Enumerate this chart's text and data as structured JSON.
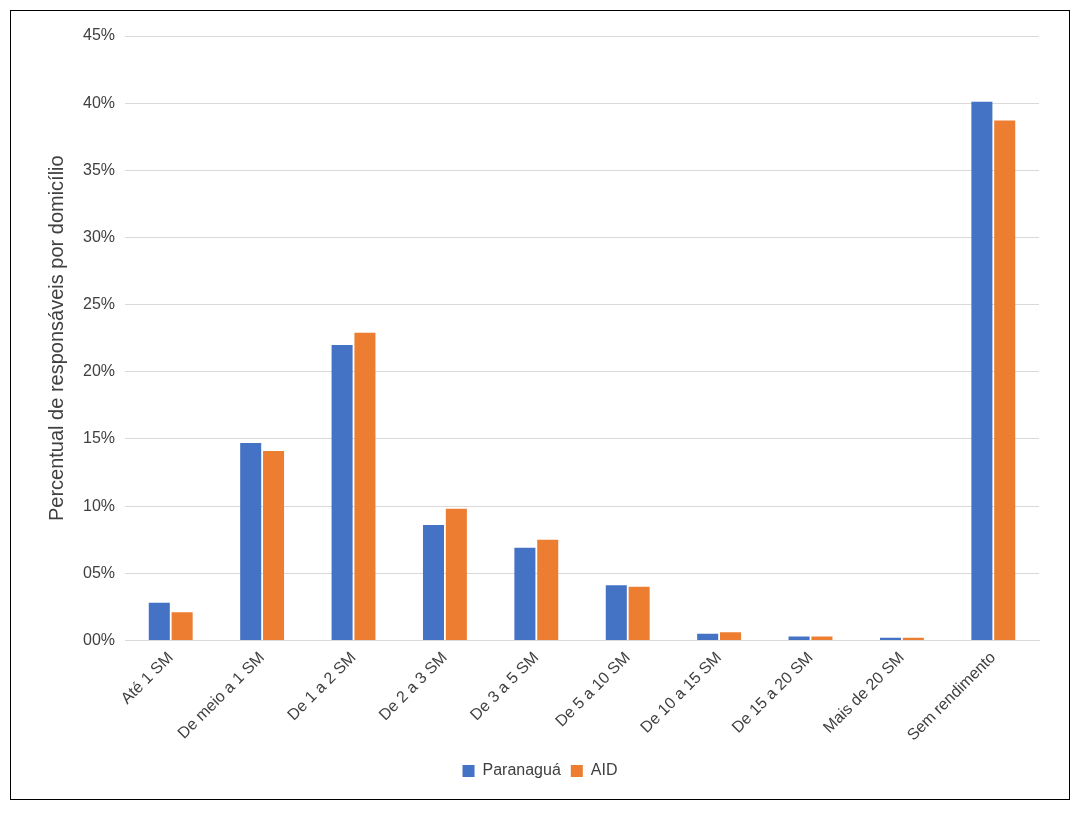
{
  "chart_data": {
    "type": "bar",
    "ylabel": "Percentual de responsáveis por domicílio",
    "categories": [
      "Até 1 SM",
      "De meio a 1 SM",
      "De 1 a 2 SM",
      "De 2 a 3 SM",
      "De 3 a 5 SM",
      "De 5 a 10 SM",
      "De 10 a 15 SM",
      "De 15 a 20 SM",
      "Mais de 20 SM",
      "Sem rendimento"
    ],
    "series": [
      {
        "name": "Paranaguá",
        "color": "#4472c4",
        "values": [
          2.8,
          14.7,
          22.0,
          8.6,
          6.9,
          4.1,
          0.5,
          0.3,
          0.2,
          40.1
        ]
      },
      {
        "name": "AID",
        "color": "#ed7d31",
        "values": [
          2.1,
          14.1,
          22.9,
          9.8,
          7.5,
          4.0,
          0.6,
          0.3,
          0.2,
          38.7
        ]
      }
    ],
    "ylim": [
      0,
      45
    ],
    "yticks": [
      {
        "value": 0,
        "label": "00%"
      },
      {
        "value": 5,
        "label": "05%"
      },
      {
        "value": 10,
        "label": "10%"
      },
      {
        "value": 15,
        "label": "15%"
      },
      {
        "value": 20,
        "label": "20%"
      },
      {
        "value": 25,
        "label": "25%"
      },
      {
        "value": 30,
        "label": "30%"
      },
      {
        "value": 35,
        "label": "35%"
      },
      {
        "value": 40,
        "label": "40%"
      },
      {
        "value": 45,
        "label": "45%"
      }
    ],
    "grid": "y",
    "legend": "bottom"
  }
}
